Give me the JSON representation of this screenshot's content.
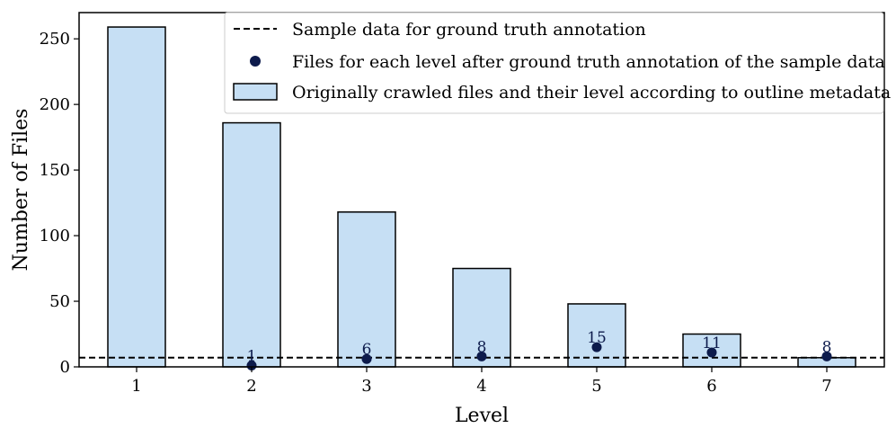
{
  "chart_data": {
    "type": "bar",
    "title": "",
    "xlabel": "Level",
    "ylabel": "Number of Files",
    "categories": [
      "1",
      "2",
      "3",
      "4",
      "5",
      "6",
      "7"
    ],
    "ylim": [
      0,
      270
    ],
    "yticks": [
      0,
      50,
      100,
      150,
      200,
      250
    ],
    "grid": false,
    "legend_position": "top-right",
    "series": [
      {
        "name": "Originally crawled files and their level according to outline metadata",
        "kind": "bar",
        "color": "#c6dff4",
        "edge_color": "#000000",
        "values": [
          259,
          186,
          118,
          75,
          48,
          25,
          7
        ]
      },
      {
        "name": "Files for each level after ground truth annotation of the sample data",
        "kind": "scatter",
        "color": "#0d1b4c",
        "values": [
          null,
          1,
          6,
          8,
          15,
          11,
          8
        ],
        "labels": [
          "",
          "1",
          "6",
          "8",
          "15",
          "11",
          "8"
        ]
      },
      {
        "name": "Sample data for ground truth annotation",
        "kind": "hline",
        "color": "#000000",
        "style": "dashed",
        "value": 7
      }
    ]
  }
}
